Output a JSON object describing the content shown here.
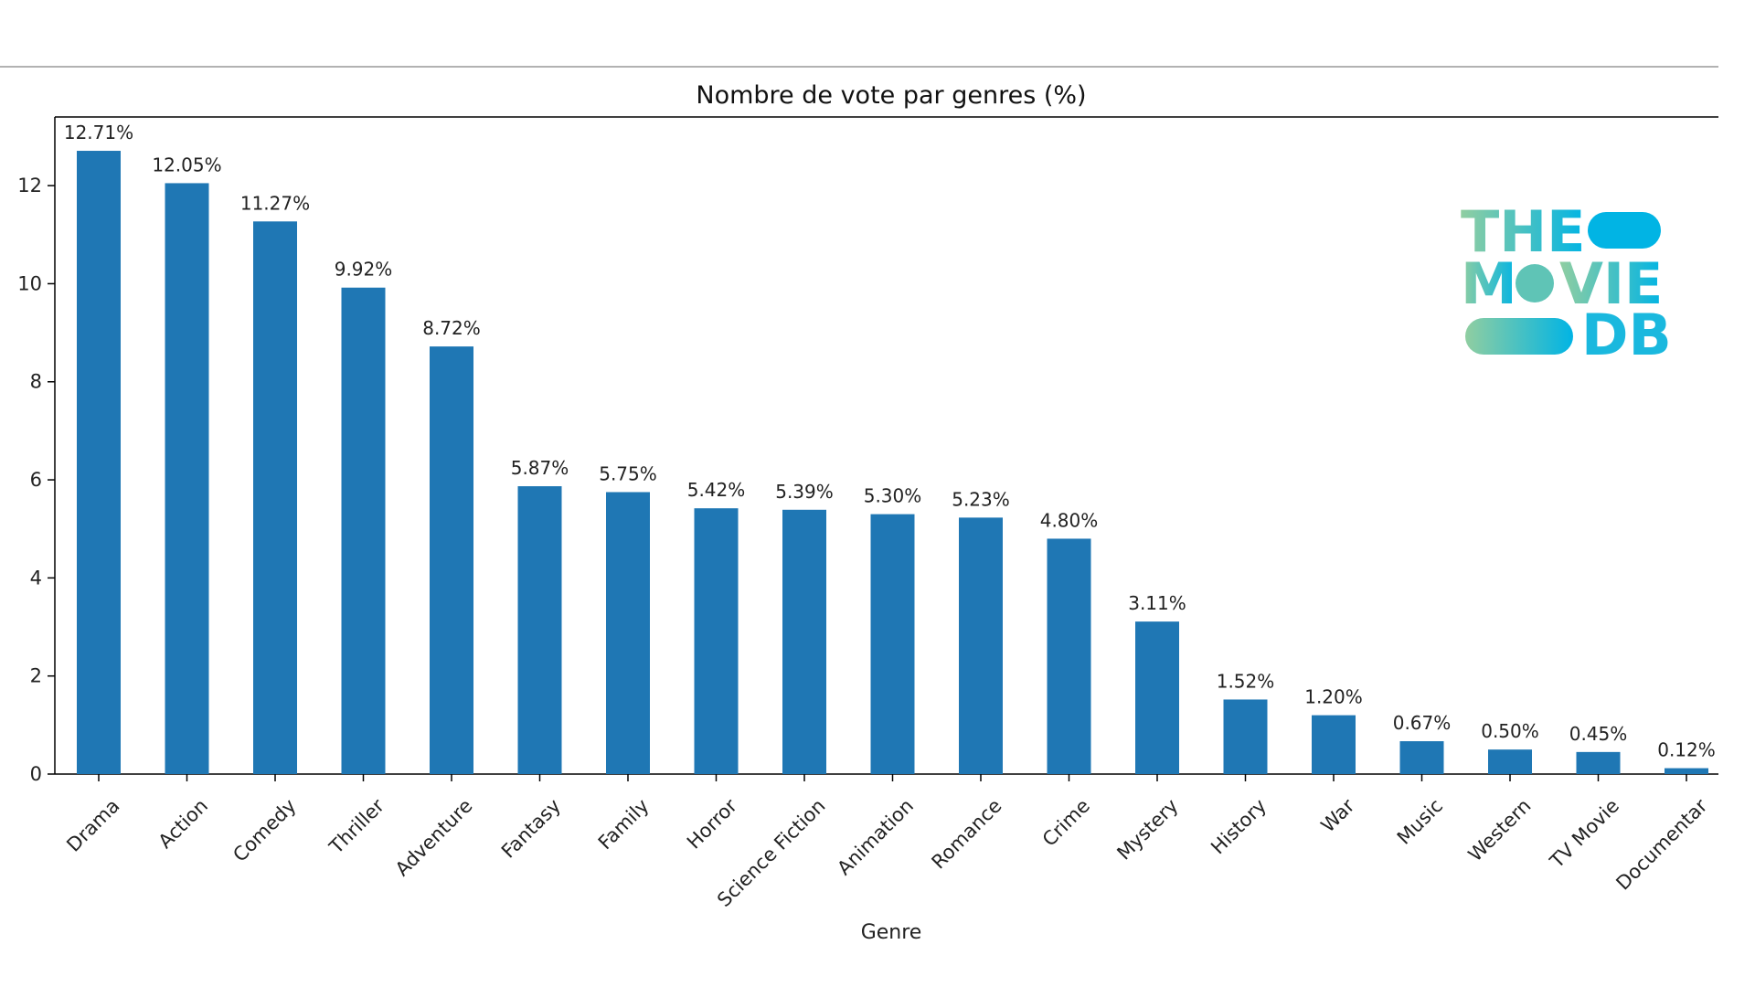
{
  "chart_data": {
    "type": "bar",
    "title": "Nombre de vote par genres (%)",
    "xlabel": "Genre",
    "ylabel": "",
    "ylim": [
      0,
      13.4
    ],
    "yticks": [
      0,
      2,
      4,
      6,
      8,
      10,
      12
    ],
    "grid": false,
    "bar_color": "#1f77b4",
    "categories": [
      "Drama",
      "Action",
      "Comedy",
      "Thriller",
      "Adventure",
      "Fantasy",
      "Family",
      "Horror",
      "Science Fiction",
      "Animation",
      "Romance",
      "Crime",
      "Mystery",
      "History",
      "War",
      "Music",
      "Western",
      "TV Movie",
      "Documentar"
    ],
    "values": [
      12.71,
      12.05,
      11.27,
      9.92,
      8.72,
      5.87,
      5.75,
      5.42,
      5.39,
      5.3,
      5.23,
      4.8,
      3.11,
      1.52,
      1.2,
      0.67,
      0.5,
      0.45,
      0.12
    ],
    "data_labels": [
      "12.71%",
      "12.05%",
      "11.27%",
      "9.92%",
      "8.72%",
      "5.87%",
      "5.75%",
      "5.42%",
      "5.39%",
      "5.30%",
      "5.23%",
      "4.80%",
      "3.11%",
      "1.52%",
      "1.20%",
      "0.67%",
      "0.50%",
      "0.45%",
      "0.12%"
    ]
  },
  "logo": {
    "line1": "THE",
    "line2_a": "M",
    "line2_b": "VIE",
    "line3": "DB",
    "gradient_start": "#90cea1",
    "gradient_end": "#01b4e4"
  }
}
